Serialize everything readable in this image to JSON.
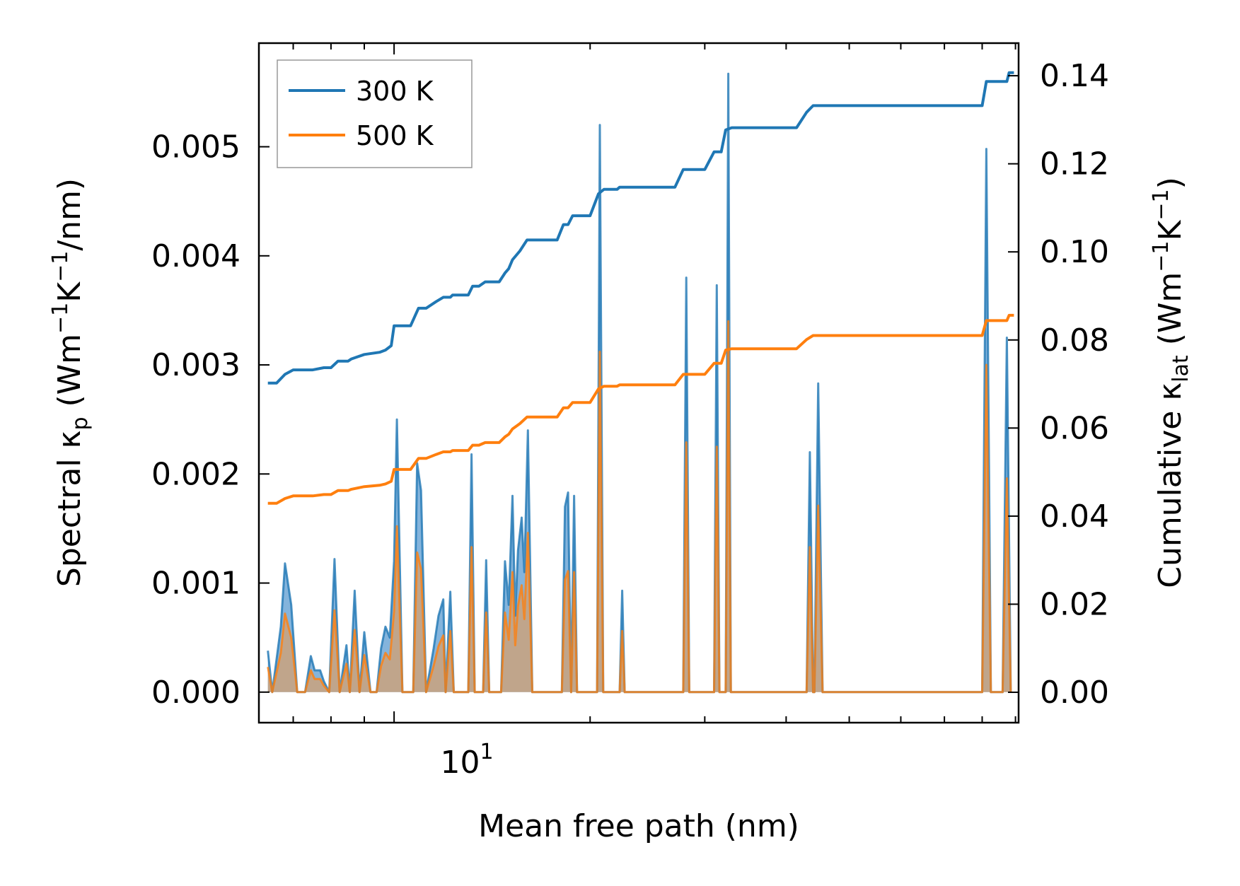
{
  "chart_data": {
    "type": "line",
    "title": "",
    "xlabel": "Mean free path (nm)",
    "xscale": "log",
    "xlim": [
      6.2,
      91
    ],
    "x_major_tick_labels": [
      {
        "base": "10",
        "exp": "1",
        "value": 10
      }
    ],
    "y_left": {
      "label": {
        "main": "Spectral κ",
        "sub": "p",
        "unit_prefix": " (Wm",
        "sup1": "−1",
        "mid": "K",
        "sup2": "−1",
        "tail": "/nm)"
      },
      "ylim": [
        -0.00028,
        0.00595
      ],
      "ticks": [
        0.0,
        0.001,
        0.002,
        0.003,
        0.004,
        0.005
      ],
      "tick_labels": [
        "0.000",
        "0.001",
        "0.002",
        "0.003",
        "0.004",
        "0.005"
      ]
    },
    "y_right": {
      "label": {
        "main": "Cumulative κ",
        "sub": "lat",
        "unit_prefix": " (Wm",
        "sup1": "−1",
        "mid": "K",
        "sup2": "−1",
        "tail": ")"
      },
      "ylim": [
        -0.0069,
        0.1474
      ],
      "ticks": [
        0.0,
        0.02,
        0.04,
        0.06,
        0.08,
        0.1,
        0.12,
        0.14
      ],
      "tick_labels": [
        "0.00",
        "0.02",
        "0.04",
        "0.06",
        "0.08",
        "0.10",
        "0.12",
        "0.14"
      ]
    },
    "legend": {
      "position": "top-left",
      "entries": [
        "300 K",
        "500 K"
      ]
    },
    "colors": {
      "s300": "#1f77b4",
      "s500": "#ff7f0e",
      "fill300": "#5b9bd0",
      "fill500": "#d4a070"
    },
    "spectral_series": [
      {
        "name": "300 K",
        "points": [
          [
            6.4,
            0.00038
          ],
          [
            6.5,
            0.0
          ],
          [
            6.7,
            0.0006
          ],
          [
            6.8,
            0.00118
          ],
          [
            6.95,
            0.0008
          ],
          [
            7.1,
            0.0
          ],
          [
            7.3,
            0.0
          ],
          [
            7.45,
            0.00033
          ],
          [
            7.55,
            0.0002
          ],
          [
            7.7,
            0.0002
          ],
          [
            7.8,
            0.0001
          ],
          [
            7.95,
            0.0
          ],
          [
            8.1,
            0.00122
          ],
          [
            8.25,
            0.0
          ],
          [
            8.45,
            0.00043
          ],
          [
            8.55,
            0.0
          ],
          [
            8.7,
            0.00093
          ],
          [
            8.85,
            0.0
          ],
          [
            9.0,
            0.00055
          ],
          [
            9.2,
            0.0
          ],
          [
            9.4,
            0.0
          ],
          [
            9.55,
            0.0004
          ],
          [
            9.7,
            0.0006
          ],
          [
            9.85,
            0.0005
          ],
          [
            10.0,
            0.0012
          ],
          [
            10.1,
            0.0025
          ],
          [
            10.3,
            0.0
          ],
          [
            10.7,
            0.0
          ],
          [
            10.85,
            0.0021
          ],
          [
            11.0,
            0.00185
          ],
          [
            11.2,
            0.0
          ],
          [
            11.5,
            0.0004
          ],
          [
            11.7,
            0.0007
          ],
          [
            11.9,
            0.00085
          ],
          [
            12.0,
            0.0
          ],
          [
            12.2,
            0.00092
          ],
          [
            12.35,
            0.0
          ],
          [
            13.0,
            0.0
          ],
          [
            13.15,
            0.00218
          ],
          [
            13.3,
            0.0
          ],
          [
            13.7,
            0.0
          ],
          [
            13.85,
            0.00121
          ],
          [
            14.0,
            0.0
          ],
          [
            14.6,
            0.0
          ],
          [
            14.8,
            0.0012
          ],
          [
            15.0,
            0.0008
          ],
          [
            15.2,
            0.0018
          ],
          [
            15.35,
            0.0007
          ],
          [
            15.5,
            0.0013
          ],
          [
            15.7,
            0.0016
          ],
          [
            15.85,
            0.0011
          ],
          [
            16.05,
            0.0024
          ],
          [
            16.3,
            0.0
          ],
          [
            18.1,
            0.0
          ],
          [
            18.3,
            0.0017
          ],
          [
            18.5,
            0.00183
          ],
          [
            18.7,
            0.0
          ],
          [
            18.9,
            0.0018
          ],
          [
            19.1,
            0.0
          ],
          [
            20.5,
            0.0
          ],
          [
            20.7,
            0.0052
          ],
          [
            20.95,
            0.0
          ],
          [
            22.2,
            0.0
          ],
          [
            22.4,
            0.00093
          ],
          [
            22.6,
            0.0
          ],
          [
            27.8,
            0.0
          ],
          [
            28.1,
            0.0038
          ],
          [
            28.4,
            0.0
          ],
          [
            31.0,
            0.0
          ],
          [
            31.3,
            0.00373
          ],
          [
            31.6,
            0.0
          ],
          [
            32.3,
            0.0
          ],
          [
            32.6,
            0.00567
          ],
          [
            32.9,
            0.0
          ],
          [
            43.0,
            0.0
          ],
          [
            43.5,
            0.0022
          ],
          [
            44.0,
            0.0
          ],
          [
            44.2,
            0.0
          ],
          [
            44.8,
            0.00283
          ],
          [
            45.5,
            0.0
          ],
          [
            80.0,
            0.0
          ],
          [
            81.2,
            0.00498
          ],
          [
            82.5,
            0.0
          ],
          [
            86.0,
            0.0
          ],
          [
            87.3,
            0.00325
          ],
          [
            88.5,
            0.0
          ]
        ]
      },
      {
        "name": "500 K",
        "points": [
          [
            6.4,
            0.00023
          ],
          [
            6.5,
            0.0
          ],
          [
            6.7,
            0.00036
          ],
          [
            6.8,
            0.00072
          ],
          [
            6.95,
            0.0005
          ],
          [
            7.1,
            0.0
          ],
          [
            7.3,
            0.0
          ],
          [
            7.45,
            0.0002
          ],
          [
            7.55,
            0.00012
          ],
          [
            7.7,
            0.00012
          ],
          [
            7.8,
            6e-05
          ],
          [
            7.95,
            0.0
          ],
          [
            8.1,
            0.00075
          ],
          [
            8.25,
            0.0
          ],
          [
            8.45,
            0.00026
          ],
          [
            8.55,
            0.0
          ],
          [
            8.7,
            0.00057
          ],
          [
            8.85,
            0.0
          ],
          [
            9.0,
            0.00034
          ],
          [
            9.2,
            0.0
          ],
          [
            9.4,
            0.0
          ],
          [
            9.55,
            0.00024
          ],
          [
            9.7,
            0.00036
          ],
          [
            9.85,
            0.0003
          ],
          [
            10.0,
            0.00074
          ],
          [
            10.1,
            0.00152
          ],
          [
            10.3,
            0.0
          ],
          [
            10.7,
            0.0
          ],
          [
            10.85,
            0.00128
          ],
          [
            11.0,
            0.00113
          ],
          [
            11.2,
            0.0
          ],
          [
            11.5,
            0.00024
          ],
          [
            11.7,
            0.00042
          ],
          [
            11.9,
            0.00052
          ],
          [
            12.0,
            0.0
          ],
          [
            12.2,
            0.00056
          ],
          [
            12.35,
            0.0
          ],
          [
            13.0,
            0.0
          ],
          [
            13.15,
            0.00133
          ],
          [
            13.3,
            0.0
          ],
          [
            13.7,
            0.0
          ],
          [
            13.85,
            0.00073
          ],
          [
            14.0,
            0.0
          ],
          [
            14.6,
            0.0
          ],
          [
            14.8,
            0.00073
          ],
          [
            15.0,
            0.00048
          ],
          [
            15.2,
            0.0011
          ],
          [
            15.35,
            0.00043
          ],
          [
            15.5,
            0.00079
          ],
          [
            15.7,
            0.00098
          ],
          [
            15.85,
            0.00067
          ],
          [
            16.05,
            0.00146
          ],
          [
            16.3,
            0.0
          ],
          [
            18.1,
            0.0
          ],
          [
            18.3,
            0.00103
          ],
          [
            18.5,
            0.00111
          ],
          [
            18.7,
            0.0
          ],
          [
            18.9,
            0.0011
          ],
          [
            19.1,
            0.0
          ],
          [
            20.5,
            0.0
          ],
          [
            20.7,
            0.00312
          ],
          [
            20.95,
            0.0
          ],
          [
            22.2,
            0.0
          ],
          [
            22.4,
            0.00056
          ],
          [
            22.6,
            0.0
          ],
          [
            27.8,
            0.0
          ],
          [
            28.1,
            0.00229
          ],
          [
            28.4,
            0.0
          ],
          [
            31.0,
            0.0
          ],
          [
            31.3,
            0.00225
          ],
          [
            31.6,
            0.0
          ],
          [
            32.3,
            0.0
          ],
          [
            32.6,
            0.0034
          ],
          [
            32.9,
            0.0
          ],
          [
            43.0,
            0.0
          ],
          [
            43.5,
            0.00133
          ],
          [
            44.0,
            0.0
          ],
          [
            44.2,
            0.0
          ],
          [
            44.8,
            0.00171
          ],
          [
            45.5,
            0.0
          ],
          [
            80.0,
            0.0
          ],
          [
            81.2,
            0.003
          ],
          [
            82.5,
            0.0
          ],
          [
            86.0,
            0.0
          ],
          [
            87.3,
            0.00196
          ],
          [
            88.5,
            0.0
          ]
        ]
      }
    ],
    "cumulative_series": [
      {
        "name": "300 K",
        "points": [
          [
            6.4,
            0.0702
          ],
          [
            6.6,
            0.0702
          ],
          [
            6.8,
            0.0722
          ],
          [
            7.0,
            0.0732
          ],
          [
            7.5,
            0.0732
          ],
          [
            7.8,
            0.0737
          ],
          [
            8.0,
            0.0737
          ],
          [
            8.2,
            0.0752
          ],
          [
            8.5,
            0.0752
          ],
          [
            8.6,
            0.0757
          ],
          [
            9.0,
            0.0767
          ],
          [
            9.5,
            0.0772
          ],
          [
            9.7,
            0.0777
          ],
          [
            9.9,
            0.0787
          ],
          [
            10.0,
            0.0832
          ],
          [
            10.6,
            0.0832
          ],
          [
            10.9,
            0.0872
          ],
          [
            11.2,
            0.0872
          ],
          [
            11.6,
            0.0887
          ],
          [
            11.9,
            0.0897
          ],
          [
            12.2,
            0.0897
          ],
          [
            12.3,
            0.0902
          ],
          [
            13.0,
            0.0902
          ],
          [
            13.2,
            0.0922
          ],
          [
            13.5,
            0.0922
          ],
          [
            13.8,
            0.0932
          ],
          [
            14.5,
            0.0932
          ],
          [
            14.8,
            0.0952
          ],
          [
            15.0,
            0.0962
          ],
          [
            15.2,
            0.0982
          ],
          [
            15.6,
            0.1002
          ],
          [
            16.0,
            0.1027
          ],
          [
            16.3,
            0.1027
          ],
          [
            17.8,
            0.1027
          ],
          [
            18.2,
            0.1062
          ],
          [
            18.5,
            0.1062
          ],
          [
            18.8,
            0.1082
          ],
          [
            20.0,
            0.1082
          ],
          [
            20.6,
            0.1132
          ],
          [
            21.0,
            0.1142
          ],
          [
            22.0,
            0.1142
          ],
          [
            22.2,
            0.1147
          ],
          [
            27.0,
            0.1147
          ],
          [
            27.8,
            0.1187
          ],
          [
            28.2,
            0.1187
          ],
          [
            29.0,
            0.1187
          ],
          [
            30.0,
            0.1187
          ],
          [
            31.0,
            0.1227
          ],
          [
            31.8,
            0.1227
          ],
          [
            32.3,
            0.1277
          ],
          [
            33.0,
            0.1282
          ],
          [
            40.0,
            0.1282
          ],
          [
            41.5,
            0.1282
          ],
          [
            43.0,
            0.1317
          ],
          [
            44.0,
            0.1332
          ],
          [
            80.0,
            0.1332
          ],
          [
            81.2,
            0.1387
          ],
          [
            83.0,
            0.1387
          ],
          [
            87.3,
            0.1387
          ],
          [
            88.0,
            0.1407
          ],
          [
            89.5,
            0.1407
          ]
        ]
      },
      {
        "name": "500 K",
        "points": [
          [
            6.4,
            0.0429
          ],
          [
            6.6,
            0.0429
          ],
          [
            6.8,
            0.044
          ],
          [
            7.0,
            0.0446
          ],
          [
            7.5,
            0.0446
          ],
          [
            7.8,
            0.0449
          ],
          [
            8.0,
            0.0449
          ],
          [
            8.2,
            0.0458
          ],
          [
            8.5,
            0.0458
          ],
          [
            8.6,
            0.0461
          ],
          [
            9.0,
            0.0467
          ],
          [
            9.5,
            0.047
          ],
          [
            9.7,
            0.0473
          ],
          [
            9.9,
            0.0479
          ],
          [
            10.0,
            0.0506
          ],
          [
            10.6,
            0.0506
          ],
          [
            10.9,
            0.0531
          ],
          [
            11.2,
            0.0531
          ],
          [
            11.6,
            0.054
          ],
          [
            11.9,
            0.0546
          ],
          [
            12.2,
            0.0546
          ],
          [
            12.3,
            0.0549
          ],
          [
            13.0,
            0.0549
          ],
          [
            13.2,
            0.0561
          ],
          [
            13.5,
            0.0561
          ],
          [
            13.8,
            0.0567
          ],
          [
            14.5,
            0.0567
          ],
          [
            14.8,
            0.058
          ],
          [
            15.0,
            0.0586
          ],
          [
            15.2,
            0.0598
          ],
          [
            15.6,
            0.061
          ],
          [
            16.0,
            0.0625
          ],
          [
            16.3,
            0.0625
          ],
          [
            17.8,
            0.0625
          ],
          [
            18.2,
            0.0646
          ],
          [
            18.5,
            0.0646
          ],
          [
            18.8,
            0.0658
          ],
          [
            20.0,
            0.0658
          ],
          [
            20.6,
            0.0689
          ],
          [
            21.0,
            0.0695
          ],
          [
            22.0,
            0.0695
          ],
          [
            22.2,
            0.0698
          ],
          [
            27.0,
            0.0698
          ],
          [
            27.8,
            0.0722
          ],
          [
            28.2,
            0.0722
          ],
          [
            29.0,
            0.0722
          ],
          [
            30.0,
            0.0722
          ],
          [
            31.0,
            0.0747
          ],
          [
            31.8,
            0.0747
          ],
          [
            32.3,
            0.0777
          ],
          [
            33.0,
            0.078
          ],
          [
            40.0,
            0.078
          ],
          [
            41.5,
            0.078
          ],
          [
            43.0,
            0.0801
          ],
          [
            44.0,
            0.081
          ],
          [
            80.0,
            0.081
          ],
          [
            81.2,
            0.0844
          ],
          [
            83.0,
            0.0844
          ],
          [
            87.3,
            0.0844
          ],
          [
            88.0,
            0.0856
          ],
          [
            89.5,
            0.0856
          ]
        ]
      }
    ]
  }
}
